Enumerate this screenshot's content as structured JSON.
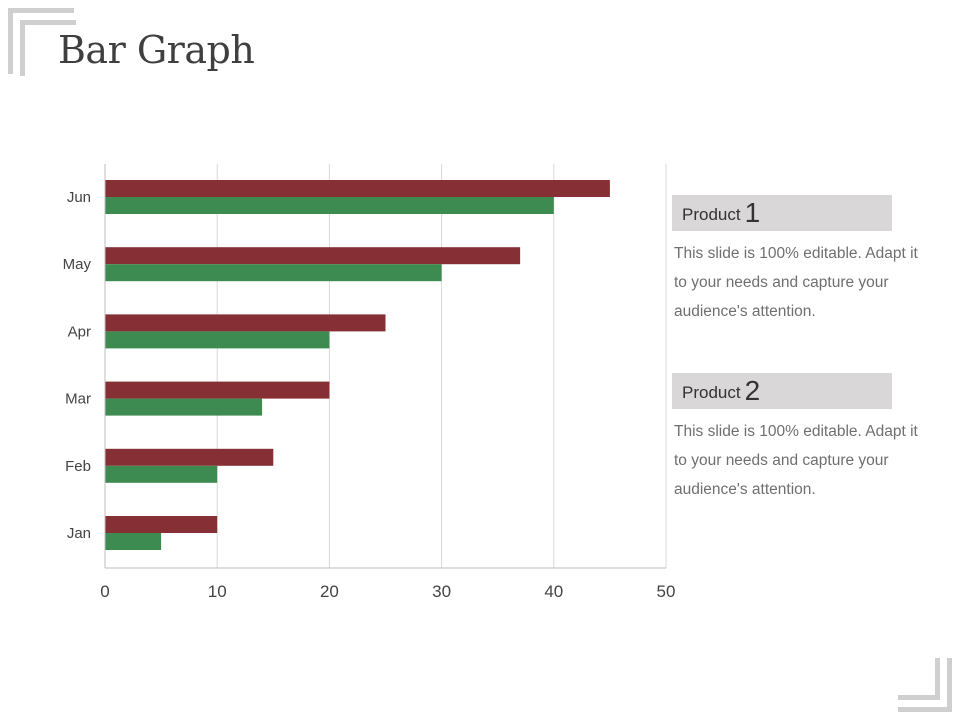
{
  "title": "Bar Graph",
  "colors": {
    "series_1": "#863036",
    "series_2": "#3e8b52",
    "grid": "#d8d8d8",
    "axis": "#bdbdbd"
  },
  "chart_data": {
    "type": "bar",
    "orientation": "horizontal",
    "categories": [
      "Jan",
      "Feb",
      "Mar",
      "Apr",
      "May",
      "Jun"
    ],
    "series": [
      {
        "values": [
          10,
          15,
          20,
          25,
          37,
          45
        ],
        "color": "#863036"
      },
      {
        "values": [
          5,
          10,
          14,
          20,
          30,
          40
        ],
        "color": "#3e8b52"
      }
    ],
    "xlim": [
      0,
      50
    ],
    "xticks": [
      0,
      10,
      20,
      30,
      40,
      50
    ],
    "xlabel": "",
    "ylabel": "",
    "grid": true,
    "legend": "none"
  },
  "products": [
    {
      "name": "Product",
      "number": "1",
      "description": "This slide is 100% editable. Adapt it to your needs and capture your audience's attention."
    },
    {
      "name": "Product",
      "number": "2",
      "description": "This slide is 100% editable. Adapt it to your needs and capture your audience's attention."
    }
  ]
}
